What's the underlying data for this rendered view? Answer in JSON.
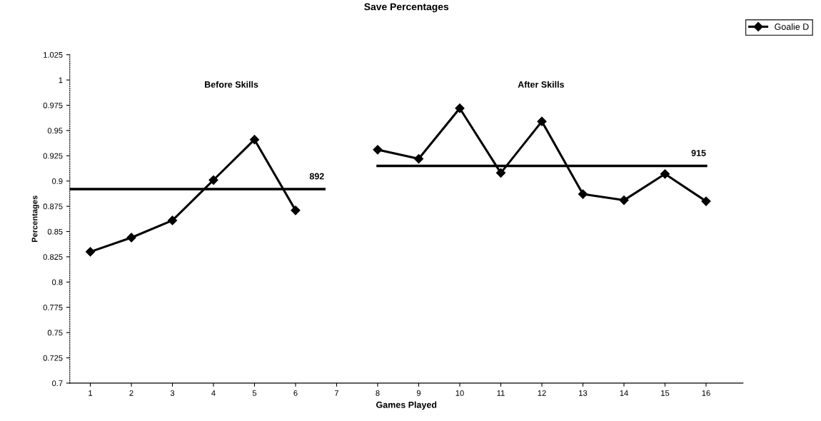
{
  "chart_data": {
    "type": "line",
    "title": "Save Percentages",
    "xlabel": "Games Played",
    "ylabel": "Percentages",
    "x": [
      1,
      2,
      3,
      4,
      5,
      6,
      7,
      8,
      9,
      10,
      11,
      12,
      13,
      14,
      15,
      16
    ],
    "series": [
      {
        "name": "Goalie D",
        "color": "#000000",
        "values": [
          0.83,
          0.844,
          0.861,
          0.901,
          0.941,
          0.871,
          null,
          0.931,
          0.922,
          0.972,
          0.908,
          0.959,
          0.887,
          0.881,
          0.907,
          0.88
        ]
      },
      {
        "type": "line",
        "color": "#000000",
        "x": [
          0.5,
          6.7
        ],
        "values": [
          0.892,
          0.892
        ],
        "marker": "none"
      },
      {
        "type": "line",
        "color": "#000000",
        "x": [
          8,
          16
        ],
        "values": [
          0.915,
          0.915
        ],
        "marker": "none"
      }
    ],
    "annotations": [
      "Before Skills",
      "After Skills",
      {
        "text": "892",
        "x": 6.7,
        "y": 0.892
      },
      {
        "text": "915",
        "x": 16,
        "y": 0.915
      }
    ],
    "xlim": [
      0.5,
      16.9
    ],
    "xticks": [
      1,
      2,
      3,
      4,
      5,
      6,
      7,
      8,
      9,
      10,
      11,
      12,
      13,
      14,
      15,
      16
    ],
    "ylim": [
      0.7,
      1.025
    ],
    "yticks": [
      0.7,
      0.725,
      0.75,
      0.775,
      0.8,
      0.825,
      0.85,
      0.875,
      0.9,
      0.925,
      0.95,
      0.975,
      1,
      1.025
    ],
    "marker": "diamond",
    "legend": "top right",
    "grid": false
  }
}
